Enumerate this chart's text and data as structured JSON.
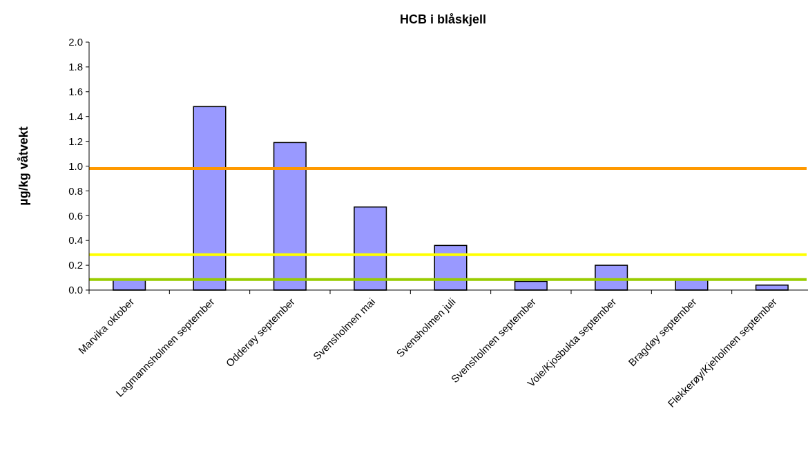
{
  "chart_data": {
    "type": "bar",
    "title": "HCB i blåskjell",
    "ylabel": "µg/kg våtvekt",
    "categories": [
      "Marvika oktober",
      "Lagmannsholmen september",
      "Odderøy september",
      "Svensholmen mai",
      "Svensholmen juli",
      "Svensholmen september",
      "Voie/Kjosbukta september",
      "Bragdøy september",
      "Flekkerøy/Kjeholmen september"
    ],
    "values": [
      0.09,
      1.48,
      1.19,
      0.67,
      0.36,
      0.07,
      0.2,
      0.09,
      0.04
    ],
    "color": "#9999ff",
    "ylim": [
      0,
      2
    ],
    "yticks": [
      {
        "value": 0,
        "label": "0.0"
      },
      {
        "value": 0.2,
        "label": "0.2"
      },
      {
        "value": 0.4,
        "label": "0.4"
      },
      {
        "value": 0.6,
        "label": "0.6"
      },
      {
        "value": 0.8,
        "label": "0.8"
      },
      {
        "value": 1,
        "label": "1.0"
      },
      {
        "value": 1.2,
        "label": "1.2"
      },
      {
        "value": 1.4,
        "label": "1.4"
      },
      {
        "value": 1.6,
        "label": "1.6"
      },
      {
        "value": 1.8,
        "label": "1.8"
      },
      {
        "value": 2,
        "label": "2.0"
      }
    ],
    "ref_lines": [
      {
        "axis": "y",
        "value": 0.98,
        "color": "#ff9900"
      },
      {
        "axis": "y",
        "value": 0.285,
        "color": "#ffff00"
      },
      {
        "axis": "y",
        "value": 0.085,
        "color": "#99cc00"
      }
    ],
    "grid": false
  }
}
